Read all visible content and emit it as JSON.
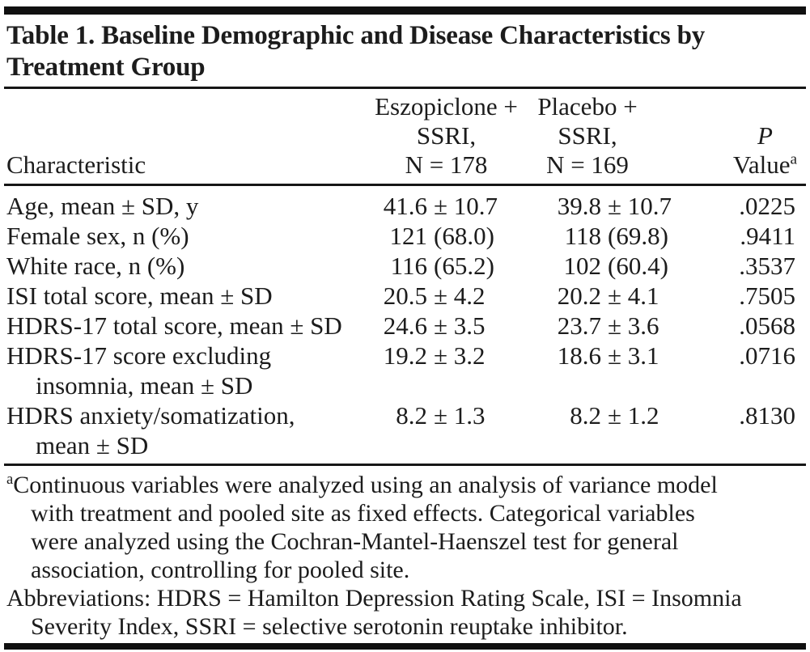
{
  "table": {
    "title_lines": [
      "Table 1. Baseline Demographic and Disease Characteristics by",
      "Treatment Group"
    ],
    "header": {
      "characteristic": "Characteristic",
      "col_eszopiclone": {
        "line1": "Eszopiclone +",
        "line2": "SSRI,",
        "line3": "N = 178"
      },
      "col_placebo": {
        "line1": "Placebo +",
        "line2": "SSRI,",
        "line3": "N = 169"
      },
      "col_p": {
        "line1": "P",
        "line2": "Value",
        "superscript": "a"
      }
    },
    "rows": [
      {
        "characteristic": "Age, mean ± SD, y",
        "characteristic_cont": "",
        "eszopiclone": "41.6 ± 10.7",
        "placebo": "39.8 ± 10.7",
        "p_value": ".0225"
      },
      {
        "characteristic": "Female sex, n (%)",
        "characteristic_cont": "",
        "eszopiclone": "121 (68.0)",
        "placebo": "118 (69.8)",
        "p_value": ".9411"
      },
      {
        "characteristic": "White race, n (%)",
        "characteristic_cont": "",
        "eszopiclone": "116 (65.2)",
        "placebo": "102 (60.4)",
        "p_value": ".3537"
      },
      {
        "characteristic": "ISI total score, mean ± SD",
        "characteristic_cont": "",
        "eszopiclone": "20.5 ± 4.2",
        "placebo": "20.2 ± 4.1",
        "p_value": ".7505"
      },
      {
        "characteristic": "HDRS-17 total score, mean ± SD",
        "characteristic_cont": "",
        "eszopiclone": "24.6 ± 3.5",
        "placebo": "23.7 ± 3.6",
        "p_value": ".0568"
      },
      {
        "characteristic": "HDRS-17 score excluding",
        "characteristic_cont": "insomnia, mean ± SD",
        "eszopiclone": "19.2 ± 3.2",
        "placebo": "18.6 ± 3.1",
        "p_value": ".0716"
      },
      {
        "characteristic": "HDRS anxiety/somatization,",
        "characteristic_cont": "mean ± SD",
        "eszopiclone": "8.2 ± 1.3",
        "placebo": "8.2 ± 1.2",
        "p_value": ".8130"
      }
    ],
    "footnotes": {
      "a_marker": "a",
      "a_lines": [
        "Continuous variables were analyzed using an analysis of variance model",
        "with treatment and pooled site as fixed effects. Categorical variables",
        "were analyzed using the Cochran-Mantel-Haenszel test for general",
        "association, controlling for pooled site."
      ],
      "abbr_lines": [
        "Abbreviations: HDRS = Hamilton Depression Rating Scale, ISI = Insomnia",
        "Severity Index, SSRI = selective serotonin reuptake inhibitor."
      ]
    },
    "colors": {
      "text": "#1c1c1c",
      "rule": "#161616",
      "background": "#ffffff"
    }
  }
}
